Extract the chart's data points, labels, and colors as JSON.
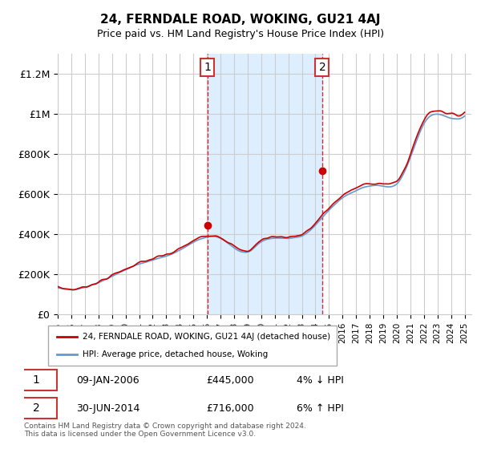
{
  "title": "24, FERNDALE ROAD, WOKING, GU21 4AJ",
  "subtitle": "Price paid vs. HM Land Registry's House Price Index (HPI)",
  "ylabel_ticks": [
    "£0",
    "£200K",
    "£400K",
    "£600K",
    "£800K",
    "£1M",
    "£1.2M"
  ],
  "ylim": [
    0,
    1300000
  ],
  "yticks": [
    0,
    200000,
    400000,
    600000,
    800000,
    1000000,
    1200000
  ],
  "sale1_date": 2006.03,
  "sale1_price": 445000,
  "sale1_label": "1",
  "sale2_date": 2014.5,
  "sale2_price": 716000,
  "sale2_label": "2",
  "legend_line1": "24, FERNDALE ROAD, WOKING, GU21 4AJ (detached house)",
  "legend_line2": "HPI: Average price, detached house, Woking",
  "table_row1": [
    "1",
    "09-JAN-2006",
    "£445,000",
    "4% ↓ HPI"
  ],
  "table_row2": [
    "2",
    "30-JUN-2014",
    "£716,000",
    "6% ↑ HPI"
  ],
  "footer": "Contains HM Land Registry data © Crown copyright and database right 2024.\nThis data is licensed under the Open Government Licence v3.0.",
  "line_color_red": "#cc0000",
  "line_color_blue": "#6699cc",
  "background_color": "#ffffff",
  "shaded_region_color": "#ddeeff",
  "grid_color": "#cccccc",
  "xstart": 1995,
  "xend": 2025
}
